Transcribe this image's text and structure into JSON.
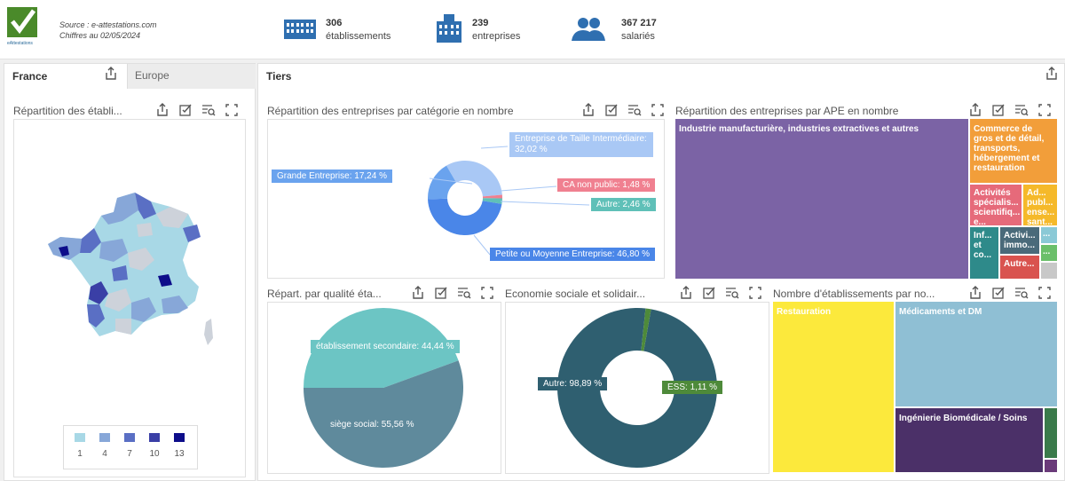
{
  "header": {
    "source_line1": "Source : e-attestations.com",
    "source_line2": "Chiffres au 02/05/2024",
    "logo_text": "eAttestations",
    "kpis": [
      {
        "icon": "building-icon",
        "value": "306",
        "label": "établissements"
      },
      {
        "icon": "company-icon",
        "value": "239",
        "label": "entreprises"
      },
      {
        "icon": "users-icon",
        "value": "367 217",
        "label": "salariés"
      }
    ]
  },
  "left_panel": {
    "tab_active": "France",
    "tab_inactive": "Europe",
    "map_title": "Répartition des établi...",
    "legend": [
      "1",
      "4",
      "7",
      "10",
      "13"
    ],
    "legend_colors": [
      "#a8d8e6",
      "#87a7d8",
      "#5a6fc4",
      "#3a3fa6",
      "#0d0d8a"
    ]
  },
  "right_panel": {
    "title": "Tiers",
    "cat_chart": {
      "title": "Répartition des entreprises par catégorie en nombre"
    },
    "ape_chart": {
      "title": "Répartition des entreprises par APE en nombre"
    },
    "qual_chart": {
      "title": "Répart. par qualité éta..."
    },
    "ess_chart": {
      "title": "Economie sociale et solidair..."
    },
    "etab_chart": {
      "title": "Nombre d'établissements par no..."
    }
  },
  "chart_data": [
    {
      "type": "pie",
      "title": "Répartition des entreprises par catégorie en nombre",
      "categories": [
        "Entreprise de Taille Intermédiaire",
        "CA non public",
        "Autre",
        "Petite ou Moyenne Entreprise",
        "Grande Entreprise"
      ],
      "values": [
        32.02,
        1.48,
        2.46,
        46.8,
        17.24
      ],
      "labels": [
        "Entreprise de Taille Intermédiaire: 32,02 %",
        "CA non public: 1,48 %",
        "Autre: 2,46 %",
        "Petite ou Moyenne Entreprise: 46,80 %",
        "Grande Entreprise: 17,24 %"
      ],
      "colors": [
        "#a9c8f5",
        "#f08090",
        "#5fc0b8",
        "#4a86e8",
        "#6aa3ee"
      ]
    },
    {
      "type": "pie",
      "title": "Répart. par qualité éta...",
      "categories": [
        "établissement secondaire",
        "siège social"
      ],
      "values": [
        44.44,
        55.56
      ],
      "labels": [
        "établissement secondaire: 44,44 %",
        "siège social: 55,56 %"
      ],
      "colors": [
        "#6cc5c4",
        "#5f8a9c"
      ]
    },
    {
      "type": "pie",
      "title": "Economie sociale et solidair...",
      "categories": [
        "Autre",
        "ESS"
      ],
      "values": [
        98.89,
        1.11
      ],
      "labels": [
        "Autre: 98,89 %",
        "ESS: 1,11 %"
      ],
      "colors": [
        "#2f5f70",
        "#4e8a3a"
      ]
    },
    {
      "type": "heatmap",
      "title": "Répartition des entreprises par APE en nombre",
      "items": [
        {
          "label": "Industrie manufacturière, industries extractives  et autres",
          "color": "#7b63a5"
        },
        {
          "label": "Commerce de gros et de détail, transports, hébergement et restauration",
          "color": "#f29e3a"
        },
        {
          "label": "Activités spécialis... scientifiq... e...",
          "color": "#e66a7a"
        },
        {
          "label": "Ad... publ... ense... sant...",
          "color": "#f5b92a"
        },
        {
          "label": "Inf... et co...",
          "color": "#2e8a8a"
        },
        {
          "label": "Activi... immo...",
          "color": "#4a6a7a"
        },
        {
          "label": "Autre...",
          "color": "#d9534f"
        },
        {
          "label": "...",
          "color": "#8ac9d6"
        },
        {
          "label": "...",
          "color": "#6bbf6a"
        }
      ]
    },
    {
      "type": "heatmap",
      "title": "Nombre d'établissements par no...",
      "items": [
        {
          "label": "Restauration",
          "color": "#fce93c"
        },
        {
          "label": "Médicaments et DM",
          "color": "#8fbfd4"
        },
        {
          "label": "Ingénierie Biomédicale / Soins",
          "color": "#4b3068"
        }
      ]
    }
  ]
}
